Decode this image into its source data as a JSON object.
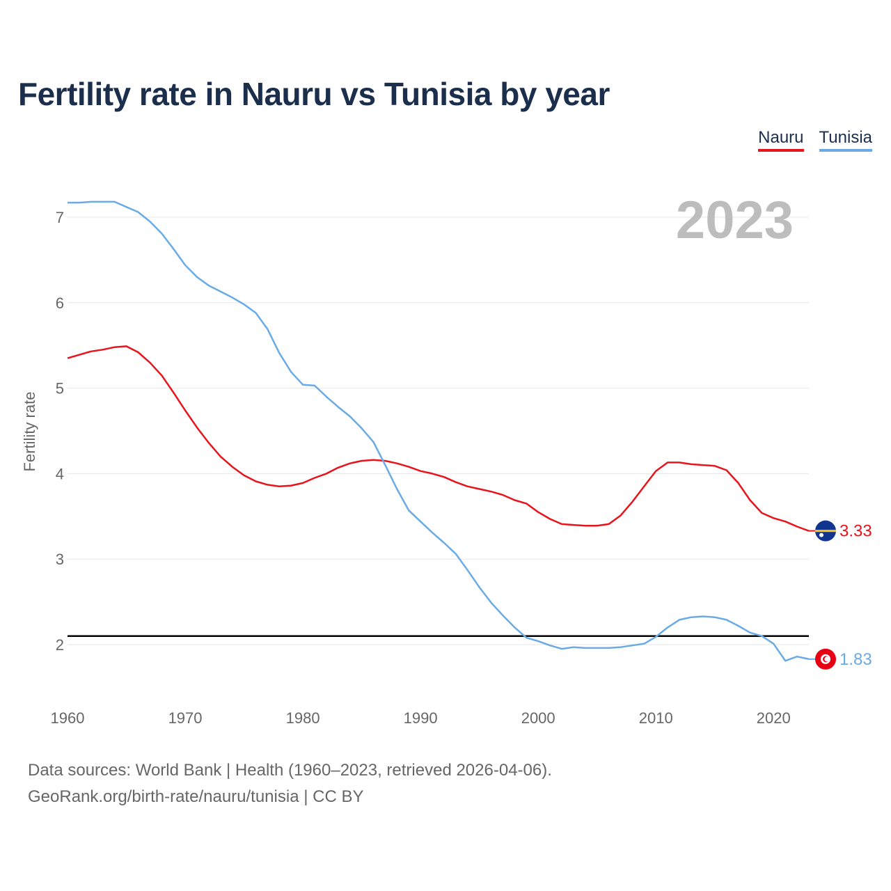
{
  "title": "Fertility rate in Nauru vs Tunisia by year",
  "legend": {
    "nauru_label": "Nauru",
    "tunisia_label": "Tunisia"
  },
  "source_lines": [
    "Data sources: World Bank | Health (1960–2023, retrieved 2026-04-06).",
    "GeoRank.org/birth-rate/nauru/tunisia | CC BY"
  ],
  "colors": {
    "nauru": "#e8141b",
    "tunisia": "#6aabe6",
    "reference": "#000000",
    "year_watermark": "#bdbdbd"
  },
  "chart_data": {
    "type": "line",
    "title": "Fertility rate in Nauru vs Tunisia by year",
    "xlabel": "",
    "ylabel": "Fertility rate",
    "xlim": [
      1960,
      2023
    ],
    "ylim": [
      1.4,
      7.3
    ],
    "x_ticks": [
      1960,
      1970,
      1980,
      1990,
      2000,
      2010,
      2020
    ],
    "y_ticks": [
      2,
      3,
      4,
      5,
      6,
      7
    ],
    "year_label": "2023",
    "reference_line": 2.1,
    "x": [
      1960,
      1961,
      1962,
      1963,
      1964,
      1965,
      1966,
      1967,
      1968,
      1969,
      1970,
      1971,
      1972,
      1973,
      1974,
      1975,
      1976,
      1977,
      1978,
      1979,
      1980,
      1981,
      1982,
      1983,
      1984,
      1985,
      1986,
      1987,
      1988,
      1989,
      1990,
      1991,
      1992,
      1993,
      1994,
      1995,
      1996,
      1997,
      1998,
      1999,
      2000,
      2001,
      2002,
      2003,
      2004,
      2005,
      2006,
      2007,
      2008,
      2009,
      2010,
      2011,
      2012,
      2013,
      2014,
      2015,
      2016,
      2017,
      2018,
      2019,
      2020,
      2021,
      2022,
      2023
    ],
    "series": [
      {
        "name": "Nauru",
        "end_label": "3.33",
        "flag": "nauru-flag",
        "values": [
          5.35,
          5.39,
          5.43,
          5.45,
          5.48,
          5.49,
          5.42,
          5.3,
          5.15,
          4.95,
          4.74,
          4.54,
          4.36,
          4.2,
          4.08,
          3.98,
          3.91,
          3.87,
          3.85,
          3.86,
          3.89,
          3.95,
          4.0,
          4.07,
          4.12,
          4.15,
          4.16,
          4.15,
          4.12,
          4.08,
          4.03,
          4.0,
          3.96,
          3.9,
          3.85,
          3.82,
          3.79,
          3.75,
          3.69,
          3.65,
          3.55,
          3.47,
          3.41,
          3.4,
          3.39,
          3.39,
          3.41,
          3.51,
          3.67,
          3.85,
          4.03,
          4.13,
          4.13,
          4.11,
          4.1,
          4.09,
          4.04,
          3.89,
          3.69,
          3.54,
          3.48,
          3.44,
          3.38,
          3.33
        ]
      },
      {
        "name": "Tunisia",
        "end_label": "1.83",
        "flag": "tunisia-flag",
        "values": [
          7.17,
          7.17,
          7.18,
          7.18,
          7.18,
          7.12,
          7.06,
          6.95,
          6.81,
          6.63,
          6.44,
          6.3,
          6.2,
          6.13,
          6.06,
          5.98,
          5.88,
          5.69,
          5.41,
          5.19,
          5.04,
          5.03,
          4.9,
          4.78,
          4.67,
          4.53,
          4.37,
          4.1,
          3.82,
          3.57,
          3.44,
          3.31,
          3.19,
          3.06,
          2.87,
          2.67,
          2.49,
          2.34,
          2.2,
          2.08,
          2.04,
          1.99,
          1.95,
          1.97,
          1.96,
          1.96,
          1.96,
          1.97,
          1.99,
          2.01,
          2.09,
          2.2,
          2.29,
          2.32,
          2.33,
          2.32,
          2.29,
          2.22,
          2.14,
          2.1,
          2.01,
          1.81,
          1.86,
          1.83
        ]
      }
    ]
  }
}
